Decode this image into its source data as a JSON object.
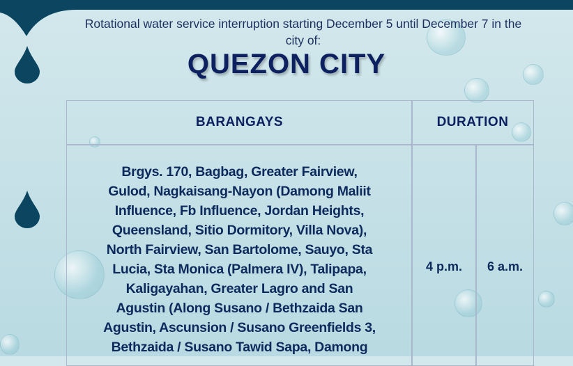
{
  "header": {
    "subtitle_line1": "Rotational water service interruption starting December 5 until December 7 in the",
    "subtitle_line2": "city of:",
    "title": "QUEZON CITY"
  },
  "table": {
    "columns": [
      "BARANGAYS",
      "DURATION"
    ],
    "rows": [
      {
        "barangays_lines": [
          "Brgys. 170, Bagbag, Greater Fairview,",
          "Gulod, Nagkaisang-Nayon (Damong Maliit",
          "Influence, Fb Influence, Jordan Heights,",
          "Queensland, Sitio Dormitory, Villa Nova),",
          "North Fairview, San Bartolome, Sauyo, Sta",
          "Lucia, Sta Monica (Palmera IV), Talipapa,",
          "Kaligayahan, Greater Lagro and San",
          "Agustin (Along Susano / Bethzaida San",
          "Agustin, Ascunsion / Susano Greenfields 3,",
          "Bethzaida / Susano Tawid Sapa, Damong"
        ],
        "start": "4 p.m.",
        "end": "6 a.m."
      }
    ]
  },
  "colors": {
    "dark_blue": "#0b4560",
    "text_navy": "#0d2160"
  }
}
